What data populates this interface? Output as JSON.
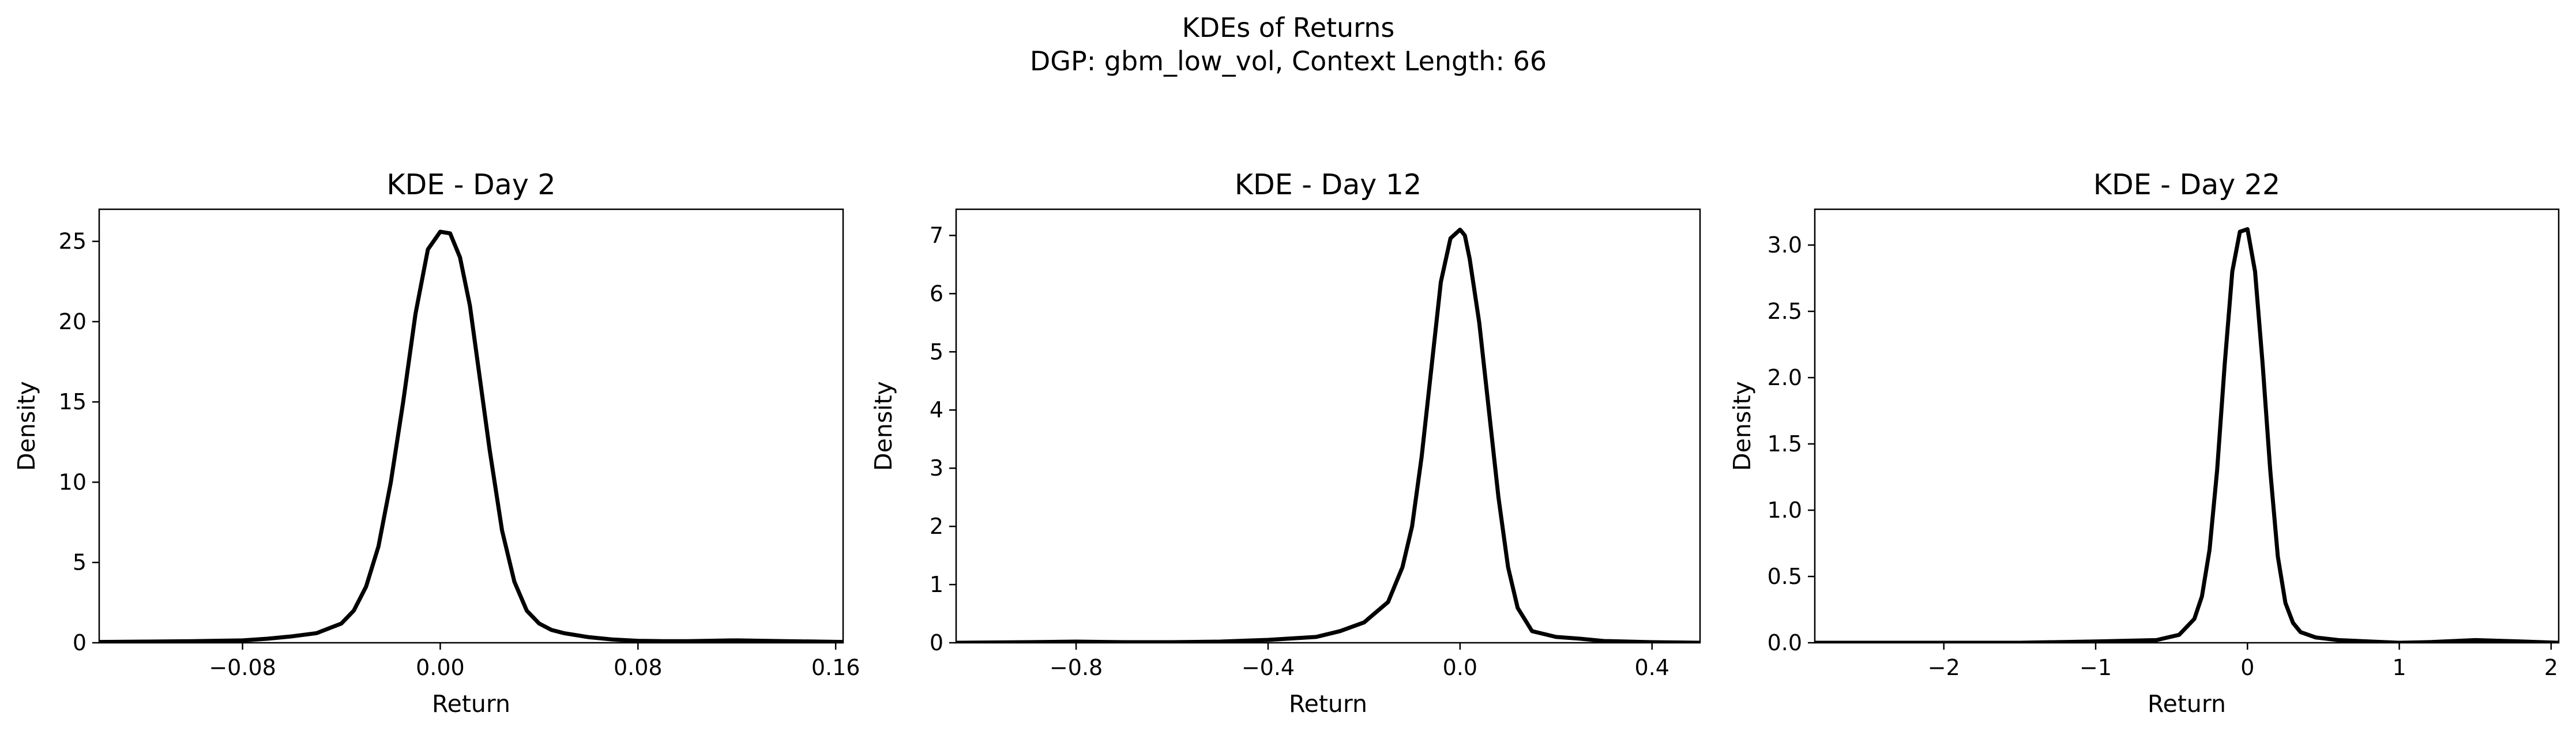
{
  "figure": {
    "title_line1": "KDEs of Returns",
    "title_line2": "DGP: gbm_low_vol, Context Length: 66"
  },
  "chart_data": [
    {
      "type": "line",
      "title": "KDE - Day 2",
      "xlabel": "Return",
      "ylabel": "Density",
      "xlim": [
        -0.138,
        0.163
      ],
      "ylim": [
        0,
        27.0
      ],
      "xticks": [
        -0.08,
        0.0,
        0.08,
        0.16
      ],
      "xtick_labels": [
        "−0.08",
        "0.00",
        "0.08",
        "0.16"
      ],
      "yticks": [
        0,
        5,
        10,
        15,
        20,
        25
      ],
      "ytick_labels": [
        "0",
        "5",
        "10",
        "15",
        "20",
        "25"
      ],
      "grid": false,
      "legend": "none",
      "line_color": "#000000",
      "series": [
        {
          "x": [
            -0.138,
            -0.12,
            -0.1,
            -0.08,
            -0.07,
            -0.06,
            -0.05,
            -0.04,
            -0.035,
            -0.03,
            -0.025,
            -0.02,
            -0.015,
            -0.01,
            -0.005,
            0.0,
            0.004,
            0.008,
            0.012,
            0.016,
            0.02,
            0.025,
            0.03,
            0.035,
            0.04,
            0.045,
            0.05,
            0.06,
            0.07,
            0.08,
            0.09,
            0.1,
            0.12,
            0.14,
            0.163
          ],
          "y": [
            0.05,
            0.07,
            0.1,
            0.15,
            0.25,
            0.4,
            0.6,
            1.2,
            2.0,
            3.5,
            6.0,
            10.0,
            15.0,
            20.5,
            24.5,
            25.6,
            25.5,
            24.0,
            21.0,
            16.5,
            12.0,
            7.0,
            3.8,
            2.0,
            1.2,
            0.8,
            0.6,
            0.35,
            0.2,
            0.12,
            0.1,
            0.1,
            0.15,
            0.1,
            0.05
          ]
        }
      ]
    },
    {
      "type": "line",
      "title": "KDE - Day 12",
      "xlabel": "Return",
      "ylabel": "Density",
      "xlim": [
        -1.05,
        0.5
      ],
      "ylim": [
        0,
        7.45
      ],
      "xticks": [
        -0.8,
        -0.4,
        0.0,
        0.4
      ],
      "xtick_labels": [
        "−0.8",
        "−0.4",
        "0.0",
        "0.4"
      ],
      "yticks": [
        0,
        1,
        2,
        3,
        4,
        5,
        6,
        7
      ],
      "ytick_labels": [
        "0",
        "1",
        "2",
        "3",
        "4",
        "5",
        "6",
        "7"
      ],
      "grid": false,
      "legend": "none",
      "line_color": "#000000",
      "series": [
        {
          "x": [
            -1.05,
            -0.9,
            -0.8,
            -0.7,
            -0.6,
            -0.5,
            -0.4,
            -0.3,
            -0.25,
            -0.2,
            -0.15,
            -0.12,
            -0.1,
            -0.08,
            -0.06,
            -0.04,
            -0.02,
            0.0,
            0.01,
            0.02,
            0.04,
            0.06,
            0.08,
            0.1,
            0.12,
            0.15,
            0.2,
            0.25,
            0.3,
            0.4,
            0.5
          ],
          "y": [
            0.0,
            0.01,
            0.02,
            0.01,
            0.01,
            0.02,
            0.05,
            0.1,
            0.2,
            0.35,
            0.7,
            1.3,
            2.0,
            3.2,
            4.7,
            6.2,
            6.95,
            7.1,
            7.0,
            6.6,
            5.5,
            4.0,
            2.5,
            1.3,
            0.6,
            0.2,
            0.1,
            0.07,
            0.03,
            0.01,
            0.0
          ]
        }
      ]
    },
    {
      "type": "line",
      "title": "KDE - Day 22",
      "xlabel": "Return",
      "ylabel": "Density",
      "xlim": [
        -2.85,
        2.05
      ],
      "ylim": [
        0,
        3.27
      ],
      "xticks": [
        -2,
        -1,
        0,
        1,
        2
      ],
      "xtick_labels": [
        "−2",
        "−1",
        "0",
        "1",
        "2"
      ],
      "yticks": [
        0.0,
        0.5,
        1.0,
        1.5,
        2.0,
        2.5,
        3.0
      ],
      "ytick_labels": [
        "0.0",
        "0.5",
        "1.0",
        "1.5",
        "2.0",
        "2.5",
        "3.0"
      ],
      "grid": false,
      "legend": "none",
      "line_color": "#000000",
      "series": [
        {
          "x": [
            -2.85,
            -2.0,
            -1.5,
            -1.0,
            -0.6,
            -0.45,
            -0.35,
            -0.3,
            -0.25,
            -0.2,
            -0.15,
            -0.1,
            -0.05,
            0.0,
            0.05,
            0.1,
            0.15,
            0.2,
            0.25,
            0.3,
            0.35,
            0.45,
            0.6,
            0.8,
            1.0,
            1.2,
            1.5,
            1.8,
            2.05
          ],
          "y": [
            0.0,
            0.0,
            0.0,
            0.01,
            0.02,
            0.06,
            0.18,
            0.35,
            0.7,
            1.3,
            2.1,
            2.8,
            3.1,
            3.12,
            2.8,
            2.1,
            1.3,
            0.65,
            0.3,
            0.15,
            0.08,
            0.04,
            0.02,
            0.01,
            0.0,
            0.005,
            0.02,
            0.01,
            0.0
          ]
        }
      ]
    }
  ]
}
